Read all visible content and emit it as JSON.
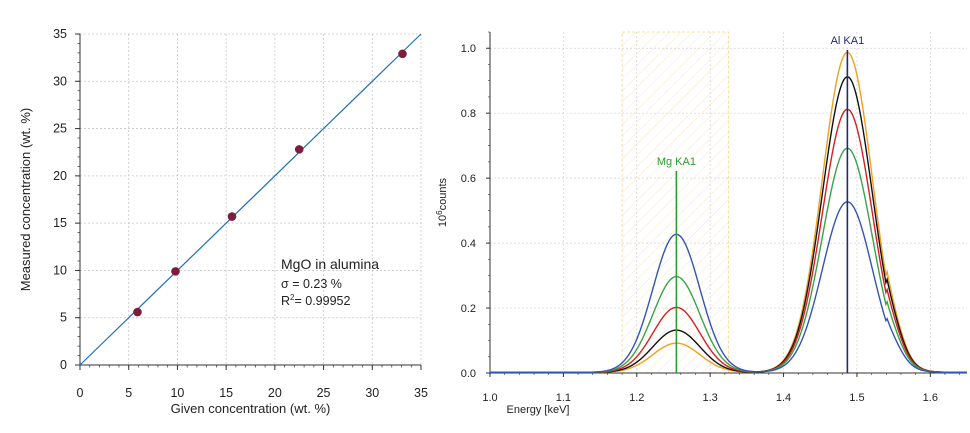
{
  "chart_data": [
    {
      "type": "scatter",
      "title": "",
      "xlabel": "Given concentration (wt. %)",
      "ylabel": "Measured concentration (wt. %)",
      "xlim": [
        0,
        35
      ],
      "ylim": [
        0,
        35
      ],
      "xticks": [
        "0",
        "5",
        "10",
        "15",
        "20",
        "25",
        "30",
        "35"
      ],
      "yticks": [
        "0",
        "5",
        "10",
        "15",
        "20",
        "25",
        "30",
        "35"
      ],
      "grid": true,
      "series": [
        {
          "points": [
            {
              "x": 5.9,
              "y": 5.6
            },
            {
              "x": 9.8,
              "y": 9.9
            },
            {
              "x": 15.6,
              "y": 15.7
            },
            {
              "x": 22.5,
              "y": 22.8
            },
            {
              "x": 33.1,
              "y": 32.9
            }
          ],
          "color": "#7a1e3c"
        }
      ],
      "fit_line": {
        "slope": 1.0,
        "intercept": 0.0,
        "color": "#1f6fb5"
      },
      "annotation": {
        "title": "MgO in alumina",
        "sigma": "σ = 0.23 %",
        "r2_prefix": "R",
        "r2_sup": "2",
        "r2_value": "= 0.99952"
      }
    },
    {
      "type": "line",
      "title": "",
      "xlabel": "Energy [keV]",
      "ylabel_prefix": "10",
      "ylabel_sup": "6",
      "ylabel_suffix": "counts",
      "xlim": [
        1.0,
        1.65
      ],
      "ylim": [
        0.0,
        1.05
      ],
      "xticks": [
        "1.0",
        "1.1",
        "1.2",
        "1.3",
        "1.4",
        "1.5",
        "1.6"
      ],
      "yticks": [
        "0.0",
        "0.2",
        "0.4",
        "0.6",
        "0.8",
        "1.0"
      ],
      "grid": true,
      "highlight_band": {
        "xmin": 1.18,
        "xmax": 1.325,
        "color": "#f5b942"
      },
      "markers": [
        {
          "label": "Mg KA1",
          "x": 1.254,
          "color": "#2e9a35"
        },
        {
          "label": "Al KA1",
          "x": 1.487,
          "color": "#1e2a78"
        }
      ],
      "series": [
        {
          "color": "#f0a020",
          "mg_peak": 0.09,
          "al_peak": 0.985
        },
        {
          "color": "#111111",
          "mg_peak": 0.13,
          "al_peak": 0.91
        },
        {
          "color": "#d42020",
          "mg_peak": 0.2,
          "al_peak": 0.81
        },
        {
          "color": "#3aa24a",
          "mg_peak": 0.295,
          "al_peak": 0.69
        },
        {
          "color": "#3454b4",
          "mg_peak": 0.425,
          "al_peak": 0.525
        }
      ]
    }
  ]
}
